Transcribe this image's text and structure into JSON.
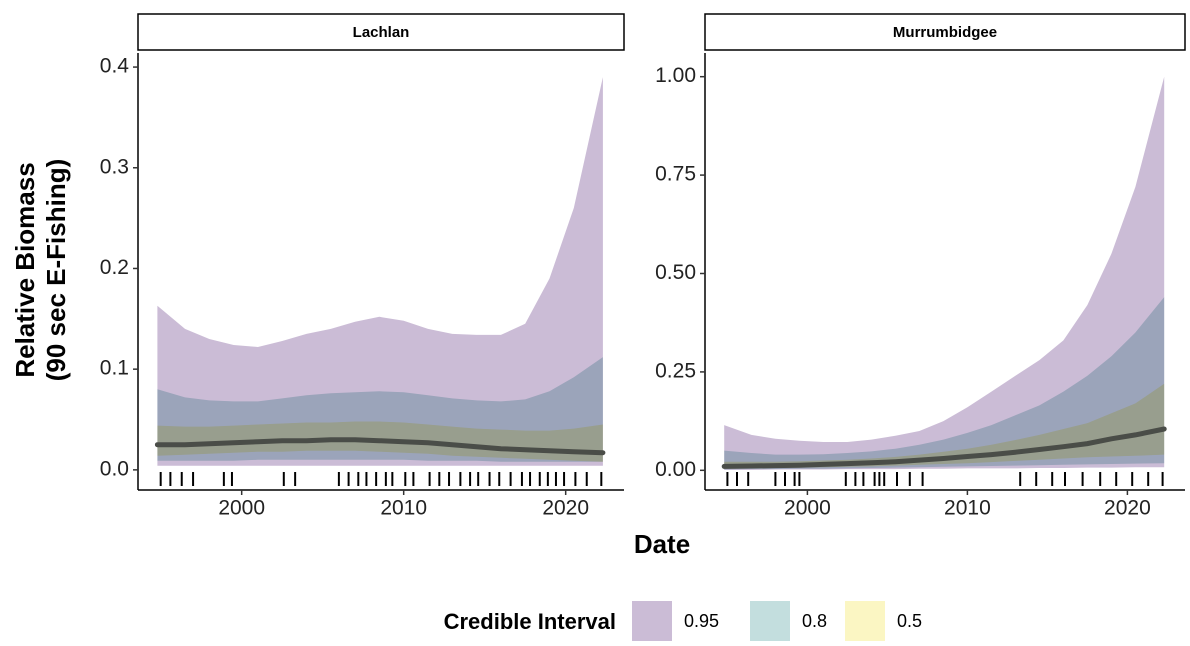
{
  "ylabel": [
    "Relative Biomass",
    "(90 sec E-Fishing)"
  ],
  "xlabel": "Date",
  "legend_title": "Credible Interval",
  "chart_data": [
    {
      "type": "ribbon",
      "title": "Lachlan",
      "x": [
        1994.8,
        1996.5,
        1998,
        1999.5,
        2001,
        2002.5,
        2004,
        2005.5,
        2007,
        2008.5,
        2010,
        2011.5,
        2013,
        2014.5,
        2016,
        2017.5,
        2019,
        2020.5,
        2022.3
      ],
      "bands": [
        {
          "name": "0.95",
          "color": "#cbbcd6",
          "lower": [
            0.004,
            0.004,
            0.004,
            0.004,
            0.004,
            0.004,
            0.004,
            0.004,
            0.004,
            0.004,
            0.004,
            0.004,
            0.004,
            0.004,
            0.004,
            0.004,
            0.004,
            0.004,
            0.004
          ],
          "upper": [
            0.163,
            0.14,
            0.13,
            0.124,
            0.122,
            0.128,
            0.135,
            0.14,
            0.147,
            0.152,
            0.148,
            0.14,
            0.135,
            0.134,
            0.134,
            0.145,
            0.19,
            0.26,
            0.39
          ]
        },
        {
          "name": "0.8",
          "color": "#c3dede",
          "lower": [
            0.009,
            0.009,
            0.009,
            0.009,
            0.01,
            0.01,
            0.01,
            0.01,
            0.01,
            0.01,
            0.01,
            0.009,
            0.009,
            0.009,
            0.008,
            0.008,
            0.008,
            0.008,
            0.008
          ],
          "upper": [
            0.08,
            0.072,
            0.069,
            0.068,
            0.068,
            0.071,
            0.074,
            0.076,
            0.077,
            0.078,
            0.077,
            0.074,
            0.071,
            0.069,
            0.068,
            0.07,
            0.078,
            0.092,
            0.112
          ]
        },
        {
          "name": "0.5",
          "color": "#fbf6c3",
          "lower": [
            0.014,
            0.015,
            0.016,
            0.017,
            0.018,
            0.018,
            0.019,
            0.019,
            0.019,
            0.018,
            0.017,
            0.016,
            0.014,
            0.013,
            0.012,
            0.011,
            0.01,
            0.009,
            0.008
          ],
          "upper": [
            0.044,
            0.043,
            0.043,
            0.044,
            0.045,
            0.046,
            0.047,
            0.047,
            0.048,
            0.048,
            0.047,
            0.045,
            0.043,
            0.041,
            0.04,
            0.039,
            0.039,
            0.041,
            0.045
          ]
        }
      ],
      "median": {
        "color": "#4a4d48",
        "values": [
          0.025,
          0.025,
          0.026,
          0.027,
          0.028,
          0.029,
          0.029,
          0.03,
          0.03,
          0.029,
          0.028,
          0.027,
          0.025,
          0.023,
          0.021,
          0.02,
          0.019,
          0.018,
          0.017
        ]
      },
      "rug": [
        1995,
        1995.6,
        1996.3,
        1997,
        1998.9,
        1999.4,
        2002.6,
        2003.3,
        2006,
        2006.6,
        2007.2,
        2007.7,
        2008.3,
        2008.9,
        2009.3,
        2010.1,
        2010.6,
        2011.6,
        2012.2,
        2012.8,
        2013.5,
        2014.1,
        2014.6,
        2015.3,
        2015.9,
        2016.6,
        2017.3,
        2017.8,
        2018.4,
        2018.9,
        2019.4,
        2019.9,
        2020.6,
        2021.3,
        2022.2
      ],
      "xlim": [
        1993.6,
        2023.6
      ],
      "xticks": [
        2000,
        2010,
        2020
      ],
      "ylim": [
        -0.02,
        0.41
      ],
      "yticks": [
        {
          "value": 0,
          "label": "0.0"
        },
        0.1,
        0.2,
        0.3,
        0.4
      ]
    },
    {
      "type": "ribbon",
      "title": "Murrumbidgee",
      "x": [
        1994.8,
        1996.5,
        1998,
        1999.5,
        2001,
        2002.5,
        2004,
        2005.5,
        2007,
        2008.5,
        2010,
        2011.5,
        2013,
        2014.5,
        2016,
        2017.5,
        2019,
        2020.5,
        2022.3
      ],
      "bands": [
        {
          "name": "0.95",
          "color": "#cbbcd6",
          "lower": [
            0.001,
            0.001,
            0.002,
            0.002,
            0.002,
            0.003,
            0.003,
            0.003,
            0.004,
            0.004,
            0.005,
            0.005,
            0.005,
            0.006,
            0.006,
            0.007,
            0.007,
            0.008,
            0.008
          ],
          "upper": [
            0.115,
            0.09,
            0.08,
            0.075,
            0.072,
            0.072,
            0.078,
            0.088,
            0.1,
            0.125,
            0.16,
            0.2,
            0.24,
            0.28,
            0.33,
            0.42,
            0.55,
            0.72,
            1.0
          ]
        },
        {
          "name": "0.8",
          "color": "#c3dede",
          "lower": [
            0.002,
            0.003,
            0.003,
            0.004,
            0.004,
            0.005,
            0.006,
            0.007,
            0.008,
            0.009,
            0.01,
            0.011,
            0.012,
            0.013,
            0.014,
            0.015,
            0.016,
            0.017,
            0.018
          ],
          "upper": [
            0.05,
            0.044,
            0.04,
            0.04,
            0.041,
            0.044,
            0.048,
            0.055,
            0.065,
            0.078,
            0.095,
            0.115,
            0.14,
            0.165,
            0.2,
            0.24,
            0.29,
            0.35,
            0.44
          ]
        },
        {
          "name": "0.5",
          "color": "#fbf6c3",
          "lower": [
            0.004,
            0.005,
            0.006,
            0.007,
            0.008,
            0.009,
            0.01,
            0.012,
            0.014,
            0.016,
            0.018,
            0.021,
            0.024,
            0.027,
            0.03,
            0.033,
            0.035,
            0.037,
            0.04
          ],
          "upper": [
            0.022,
            0.022,
            0.022,
            0.023,
            0.025,
            0.027,
            0.03,
            0.034,
            0.04,
            0.047,
            0.055,
            0.065,
            0.077,
            0.09,
            0.105,
            0.12,
            0.145,
            0.17,
            0.22
          ]
        }
      ],
      "median": {
        "color": "#4a4d48",
        "values": [
          0.01,
          0.011,
          0.012,
          0.013,
          0.015,
          0.017,
          0.019,
          0.022,
          0.026,
          0.03,
          0.035,
          0.04,
          0.046,
          0.053,
          0.06,
          0.068,
          0.08,
          0.09,
          0.105
        ]
      },
      "rug": [
        1995,
        1995.6,
        1996.3,
        1998,
        1998.6,
        1999.2,
        1999.5,
        2002.4,
        2003,
        2003.5,
        2004.2,
        2004.5,
        2004.8,
        2005.6,
        2006.4,
        2007.2,
        2013.3,
        2014.3,
        2015.3,
        2016.1,
        2017.2,
        2018.3,
        2019.3,
        2020.3,
        2021.3,
        2022.2
      ],
      "xlim": [
        1993.6,
        2023.6
      ],
      "xticks": [
        2000,
        2010,
        2020
      ],
      "ylim": [
        -0.05,
        1.05
      ],
      "yticks": [
        {
          "value": 0,
          "label": "0.00"
        },
        0.25,
        {
          "value": 0.5,
          "label": "0.50"
        },
        0.75,
        {
          "value": 1,
          "label": "1.00"
        }
      ]
    }
  ]
}
